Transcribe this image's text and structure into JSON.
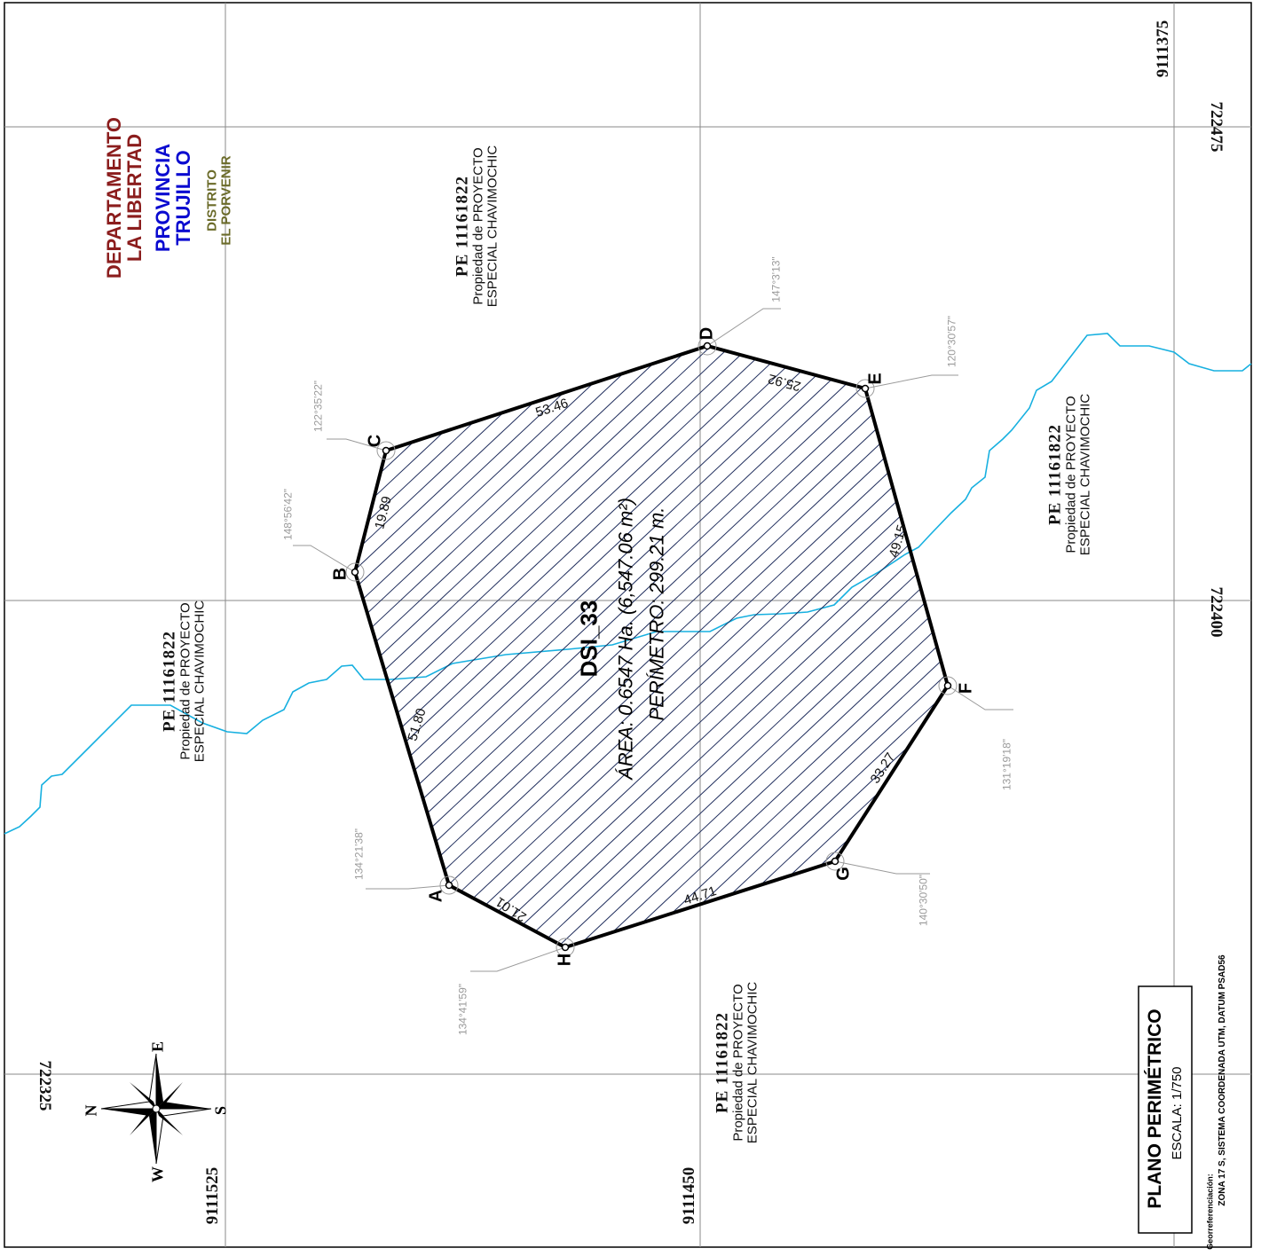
{
  "map": {
    "outer_frame": true,
    "location": {
      "departamento_label": "DEPARTAMENTO",
      "departamento_name": "LA LIBERTAD",
      "provincia_label": "PROVINCIA",
      "provincia_name": "TRUJILLO",
      "distrito_label": "DISTRITO",
      "distrito_name": "EL PORVENIR"
    },
    "properties": [
      {
        "pe": "PE  11161822",
        "line1": "Propiedad de PROYECTO",
        "line2": "ESPECIAL CHAVIMOCHIC"
      },
      {
        "pe": "PE  11161822",
        "line1": "Propiedad de PROYECTO",
        "line2": "ESPECIAL CHAVIMOCHIC"
      },
      {
        "pe": "PE  11161822",
        "line1": "Propiedad de PROYECTO",
        "line2": "ESPECIAL CHAVIMOCHIC"
      },
      {
        "pe": "PE  11161822",
        "line1": "Propiedad de PROYECTO",
        "line2": "ESPECIAL CHAVIMOCHIC"
      }
    ],
    "grid_coordinates": {
      "northing": [
        "9111375",
        "9111450",
        "9111525"
      ],
      "easting": [
        "722475",
        "722400",
        "722325"
      ]
    },
    "parcel": {
      "id": "DSI_33",
      "area": "ÁREA: 0.6547 Ha. (6,547.06 m²)",
      "perimeter": "PERÍMETRO: 299.21 m.",
      "vertices": [
        "A",
        "B",
        "C",
        "D",
        "E",
        "F",
        "G",
        "H"
      ],
      "sides": [
        {
          "from": "A",
          "to": "B",
          "length": "51.80"
        },
        {
          "from": "B",
          "to": "C",
          "length": "19.89"
        },
        {
          "from": "C",
          "to": "D",
          "length": "53.46"
        },
        {
          "from": "D",
          "to": "E",
          "length": "25.92"
        },
        {
          "from": "E",
          "to": "F",
          "length": "49.15"
        },
        {
          "from": "F",
          "to": "G",
          "length": "33.27"
        },
        {
          "from": "G",
          "to": "H",
          "length": "44.71"
        },
        {
          "from": "H",
          "to": "A",
          "length": "21.01"
        }
      ],
      "angles": [
        {
          "vertex": "A",
          "value": "134°21'38\""
        },
        {
          "vertex": "B",
          "value": "148°56'42\""
        },
        {
          "vertex": "C",
          "value": "122°35'22\""
        },
        {
          "vertex": "D",
          "value": "147°3'13\""
        },
        {
          "vertex": "E",
          "value": "120°30'57\""
        },
        {
          "vertex": "F",
          "value": "131°19'18\""
        },
        {
          "vertex": "G",
          "value": "140°30'50\""
        },
        {
          "vertex": "H",
          "value": "134°41'59\""
        }
      ]
    },
    "compass": {
      "n": "N",
      "s": "S",
      "e": "E",
      "w": "W"
    },
    "title": {
      "name": "PLANO PERIMÉTRICO",
      "scale": "ESCALA:  1/750",
      "geo_label": "Georreferenciación:",
      "geo_text": "ZONA 17 S, SISTEMA COORDENADA UTM, DATUM PSAD56"
    },
    "colors": {
      "grid": "#8a8a8a",
      "boundary": "#000000",
      "hatch": "#1c2a5a",
      "river": "#17b0e0",
      "departamento": "#8b1d1d",
      "provincia": "#0a0ad0",
      "distrito": "#6b6b2a",
      "angle_text": "#9a9a9a"
    }
  }
}
